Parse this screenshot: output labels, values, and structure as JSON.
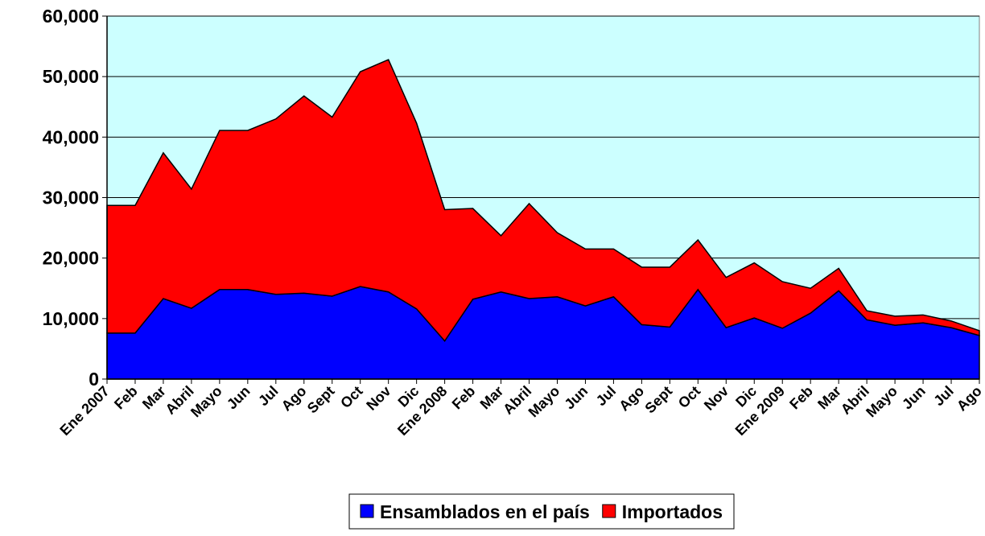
{
  "chart_data": {
    "type": "stacked_area",
    "categories": [
      "Ene 2007",
      "Feb",
      "Mar",
      "Abril",
      "Mayo",
      "Jun",
      "Jul",
      "Ago",
      "Sept",
      "Oct",
      "Nov",
      "Dic",
      "Ene 2008",
      "Feb",
      "Mar",
      "Abril",
      "Mayo",
      "Jun",
      "Jul",
      "Ago",
      "Sept",
      "Oct",
      "Nov",
      "Dic",
      "Ene 2009",
      "Feb",
      "Mar",
      "Abril",
      "Mayo",
      "Jun",
      "Jul",
      "Ago"
    ],
    "series": [
      {
        "name": "Ensamblados en el país",
        "color": "#0000ff",
        "values": [
          7600,
          7600,
          13300,
          11700,
          14800,
          14800,
          14000,
          14200,
          13700,
          15300,
          14400,
          11600,
          6300,
          13200,
          14400,
          13300,
          13600,
          12100,
          13600,
          9000,
          8600,
          14800,
          8500,
          10100,
          8400,
          10900,
          14600,
          9800,
          8900,
          9300,
          8500,
          7200
        ]
      },
      {
        "name": "Importados",
        "color": "#ff0000",
        "values": [
          21100,
          21100,
          24100,
          19700,
          26300,
          26300,
          29000,
          32600,
          29600,
          35500,
          38400,
          30700,
          21700,
          15000,
          9300,
          15700,
          10600,
          9400,
          7900,
          9500,
          9900,
          8200,
          8300,
          9100,
          7700,
          4100,
          3700,
          1500,
          1500,
          1300,
          1100,
          800
        ]
      }
    ],
    "ylim": [
      0,
      60000
    ],
    "yticks": [
      0,
      {
        "value": 10000,
        "label": "10,000"
      },
      {
        "value": 20000,
        "label": "20,000"
      },
      {
        "value": 30000,
        "label": "30,000"
      },
      {
        "value": 40000,
        "label": "40,000"
      },
      {
        "value": 50000,
        "label": "50,000"
      },
      {
        "value": 60000,
        "label": "60,000"
      }
    ],
    "grid": true,
    "background": "#ccffff",
    "legend": "bottom"
  }
}
